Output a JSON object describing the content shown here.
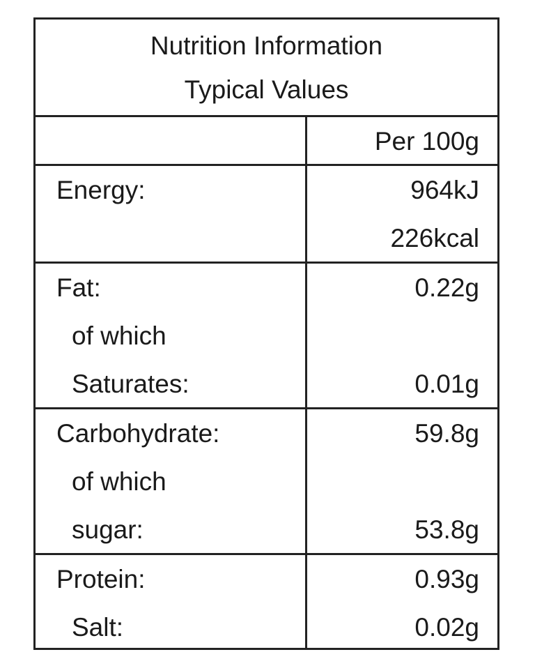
{
  "header": {
    "title": "Nutrition Information",
    "subtitle": "Typical Values"
  },
  "table": {
    "column_header": "Per 100g",
    "groups": [
      {
        "lines": [
          {
            "label": "Energy:",
            "value": "964kJ"
          },
          {
            "value": "226kcal"
          }
        ]
      },
      {
        "lines": [
          {
            "label": "Fat:",
            "value": "0.22g"
          },
          {
            "label": "of which"
          },
          {
            "label": "Saturates:",
            "value": "0.01g"
          }
        ]
      },
      {
        "lines": [
          {
            "label": "Carbohydrate:",
            "value": "59.8g"
          },
          {
            "label": "of which"
          },
          {
            "label": "sugar:",
            "value": "53.8g"
          }
        ]
      },
      {
        "lines": [
          {
            "label": "Protein:",
            "value": "0.93g"
          },
          {
            "label": "Salt:",
            "value": "0.02g"
          }
        ]
      }
    ]
  }
}
